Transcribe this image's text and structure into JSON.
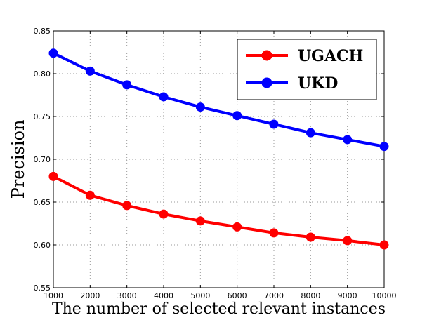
{
  "chart_data": {
    "type": "line",
    "xlabel": "The number of selected relevant instances",
    "ylabel": "Precision",
    "x": [
      1000,
      2000,
      3000,
      4000,
      5000,
      6000,
      7000,
      8000,
      9000,
      10000
    ],
    "xlim": [
      1000,
      10000
    ],
    "ylim": [
      0.55,
      0.85
    ],
    "x_ticks": [
      "1000",
      "2000",
      "3000",
      "4000",
      "5000",
      "6000",
      "7000",
      "8000",
      "9000",
      "10000"
    ],
    "y_ticks": [
      "0.55",
      "0.60",
      "0.65",
      "0.70",
      "0.75",
      "0.80",
      "0.85"
    ],
    "grid": true,
    "legend_position": "top-right",
    "series": [
      {
        "name": "UGACH",
        "color": "#ff0000",
        "values": [
          0.68,
          0.658,
          0.646,
          0.636,
          0.628,
          0.621,
          0.614,
          0.609,
          0.605,
          0.6
        ]
      },
      {
        "name": "UKD",
        "color": "#0000ff",
        "values": [
          0.824,
          0.803,
          0.787,
          0.773,
          0.761,
          0.751,
          0.741,
          0.731,
          0.723,
          0.715
        ]
      }
    ]
  }
}
